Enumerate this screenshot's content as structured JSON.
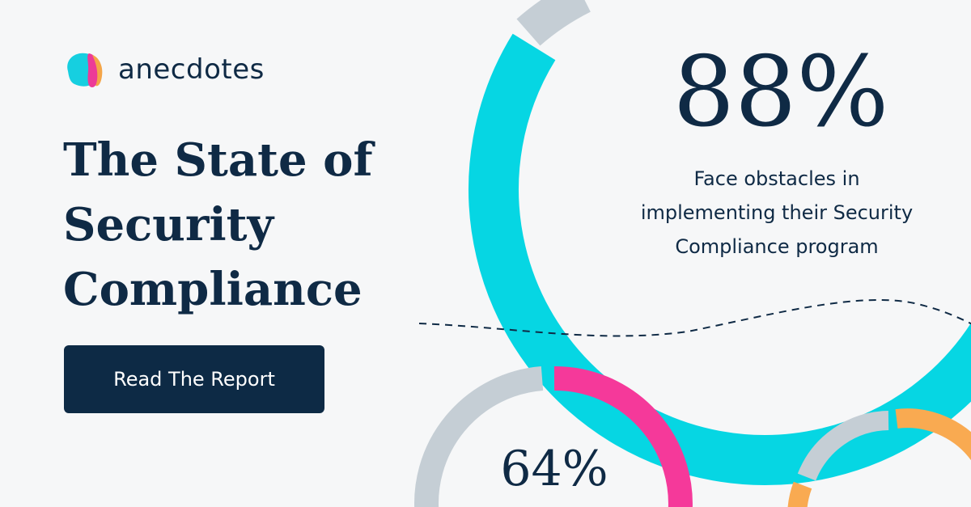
{
  "brand": {
    "name": "anecdotes"
  },
  "headline": {
    "lines": [
      "The State of",
      "Security",
      "Compliance"
    ]
  },
  "cta": {
    "label": "Read The Report"
  },
  "stats": [
    {
      "value": "88%",
      "caption_lines": [
        "Face obstacles in",
        "implementing their Security",
        "Compliance program"
      ]
    },
    {
      "value": "64%"
    }
  ],
  "colors": {
    "background": "#f6f7f8",
    "navy": "#0f2a45",
    "cyan": "#06d6e3",
    "pink": "#f5399a",
    "orange": "#f9aa51",
    "grey_ring": "#c5ced5",
    "logo_cyan": "#16cfe0",
    "logo_pink": "#ec3b97",
    "logo_orange": "#f4a548"
  }
}
